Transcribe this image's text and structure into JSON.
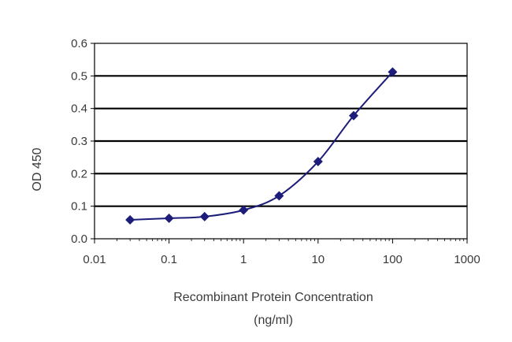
{
  "chart_data": {
    "type": "scatter",
    "title": "",
    "xlabel": "Recombinant Protein Concentration",
    "xlabel_unit": "(ng/ml)",
    "ylabel": "OD 450",
    "xscale": "log",
    "xlim": [
      0.01,
      1000
    ],
    "ylim": [
      0,
      0.6
    ],
    "x_tick_labels": [
      "0.01",
      "0.1",
      "1",
      "10",
      "100",
      "1000"
    ],
    "x_tick_values": [
      0.01,
      0.1,
      1,
      10,
      100,
      1000
    ],
    "y_tick_labels": [
      "0.0",
      "0.1",
      "0.2",
      "0.3",
      "0.4",
      "0.5",
      "0.6"
    ],
    "y_tick_values": [
      0,
      0.1,
      0.2,
      0.3,
      0.4,
      0.5,
      0.6
    ],
    "grid": "horizontal",
    "legend": "none",
    "series": [
      {
        "color": "#1c1c7a",
        "marker": "diamond",
        "line": "smooth",
        "x": [
          0.03,
          0.1,
          0.3,
          1,
          3,
          10,
          30,
          100
        ],
        "y": [
          0.058,
          0.063,
          0.068,
          0.088,
          0.132,
          0.237,
          0.378,
          0.512
        ]
      }
    ]
  }
}
